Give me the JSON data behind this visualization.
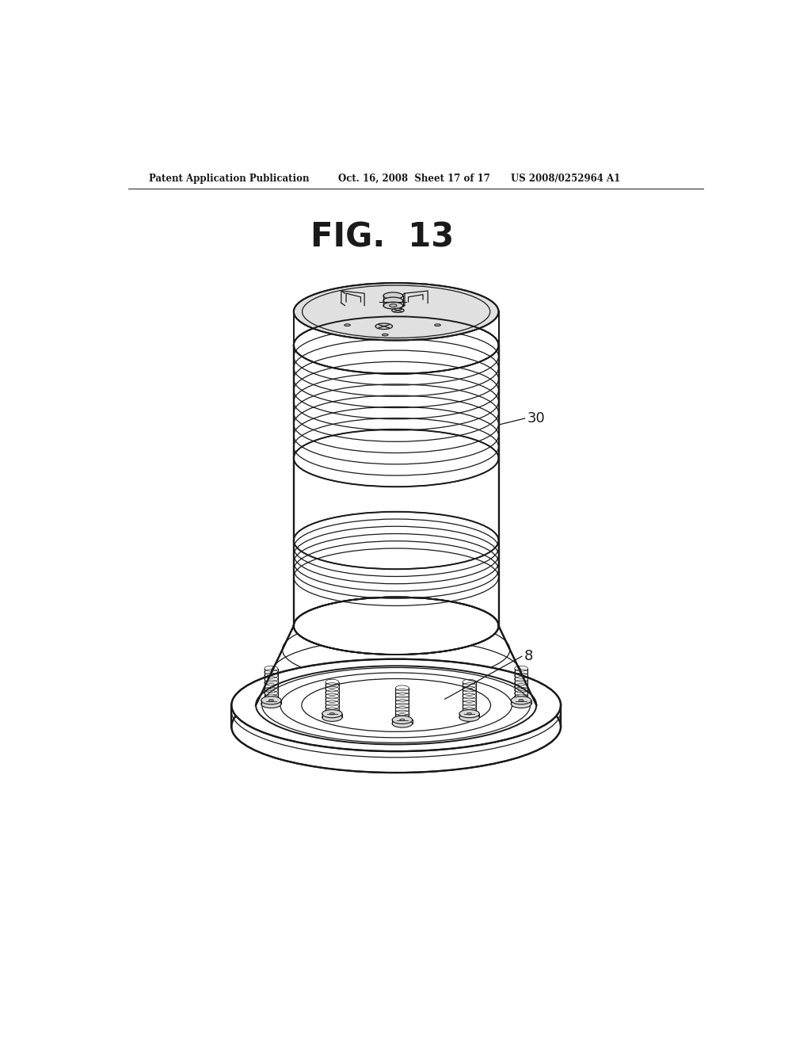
{
  "background_color": "#ffffff",
  "header_left": "Patent Application Publication",
  "header_mid": "Oct. 16, 2008  Sheet 17 of 17",
  "header_right": "US 2008/0252964 A1",
  "fig_label": "FIG.  13",
  "label_30": "30",
  "label_8": "8",
  "lc": "#1a1a1a"
}
